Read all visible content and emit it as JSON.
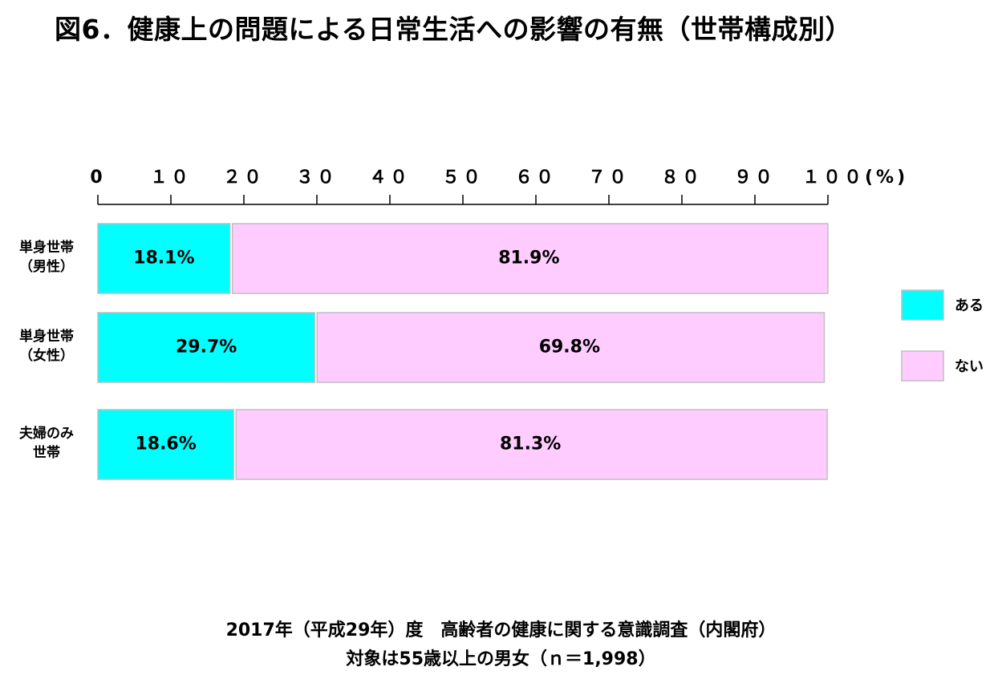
{
  "title": "図6．健康上の問題による日常生活への影響の有無（世帯構成別）",
  "source": {
    "line1": "2017年（平成29年）度　高齢者の健康に関する意識調査（内閣府）",
    "line2": "対象は55歳以上の男女（ｎ＝1,998）"
  },
  "chart_data": {
    "type": "bar",
    "orientation": "horizontal",
    "stacked": true,
    "xlim": [
      0,
      100
    ],
    "x_ticks": [
      {
        "value": 0,
        "label": "0"
      },
      {
        "value": 10,
        "label": "１０"
      },
      {
        "value": 20,
        "label": "２０"
      },
      {
        "value": 30,
        "label": "３０"
      },
      {
        "value": 40,
        "label": "４０"
      },
      {
        "value": 50,
        "label": "５０"
      },
      {
        "value": 60,
        "label": "６０"
      },
      {
        "value": 70,
        "label": "７０"
      },
      {
        "value": 80,
        "label": "８０"
      },
      {
        "value": 90,
        "label": "９０"
      },
      {
        "value": 100,
        "label": "１００(%)"
      }
    ],
    "categories": [
      [
        "単身世帯",
        "（男性）"
      ],
      [
        "単身世帯",
        "（女性）"
      ],
      [
        "夫婦のみ",
        "世帯"
      ]
    ],
    "series": [
      {
        "name": "ある",
        "color": "#00FFFF",
        "values": [
          18.1,
          29.7,
          18.6
        ],
        "labels": [
          "18.1%",
          "29.7%",
          "18.6%"
        ]
      },
      {
        "name": "ない",
        "color": "#FFCCFF",
        "values": [
          81.9,
          69.8,
          81.3
        ],
        "labels": [
          "81.9%",
          "69.8%",
          "81.3%"
        ]
      }
    ],
    "legend_position": "right",
    "grid": false
  }
}
